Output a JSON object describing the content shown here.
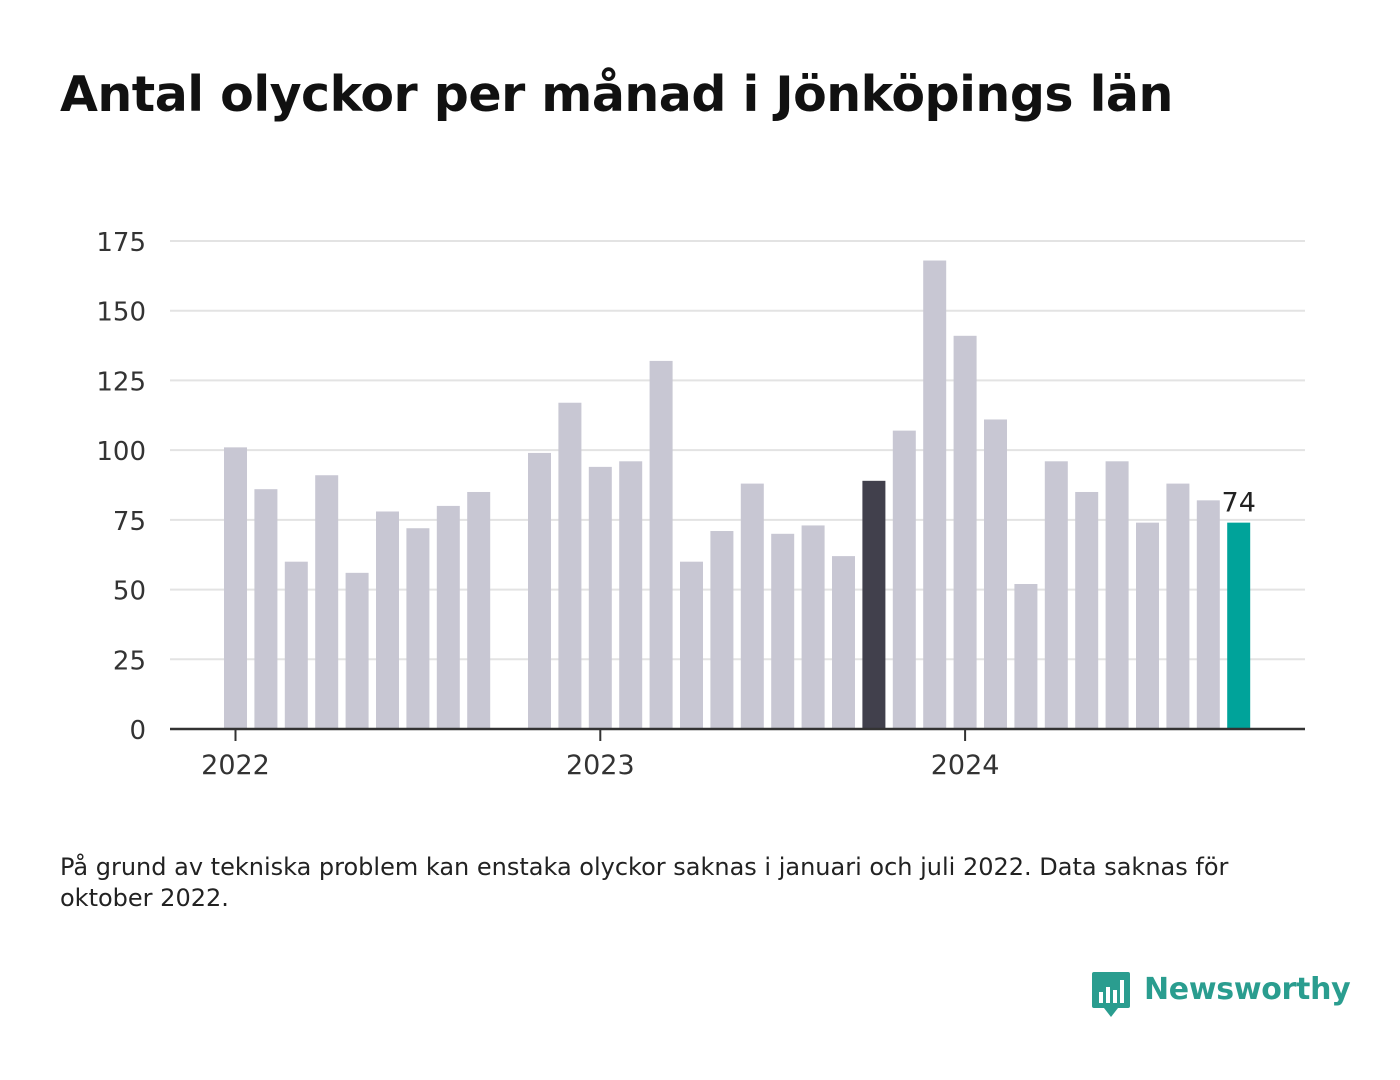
{
  "title": "Antal olyckor per månad i Jönköpings län",
  "footnote": "På grund av tekniska problem kan enstaka olyckor saknas i januari och juli 2022. Data saknas för oktober 2022.",
  "brand": {
    "name": "Newsworthy",
    "color": "#2a9d8f"
  },
  "colors": {
    "bar_default": "#c8c7d3",
    "bar_highlight_dark": "#41404c",
    "bar_latest": "#00a39a",
    "grid": "#e3e3e3",
    "axis": "#333333"
  },
  "chart_data": {
    "type": "bar",
    "title": "Antal olyckor per månad i Jönköpings län",
    "xlabel": "",
    "ylabel": "",
    "ylim": [
      0,
      175
    ],
    "yticks": [
      0,
      25,
      50,
      75,
      100,
      125,
      150,
      175
    ],
    "x_tick_labels": [
      {
        "label": "2022",
        "month": "2022-01"
      },
      {
        "label": "2023",
        "month": "2023-01"
      },
      {
        "label": "2024",
        "month": "2024-01"
      }
    ],
    "grid": true,
    "months": [
      "2022-01",
      "2022-02",
      "2022-03",
      "2022-04",
      "2022-05",
      "2022-06",
      "2022-07",
      "2022-08",
      "2022-09",
      "2022-10",
      "2022-11",
      "2022-12",
      "2023-01",
      "2023-02",
      "2023-03",
      "2023-04",
      "2023-05",
      "2023-06",
      "2023-07",
      "2023-08",
      "2023-09",
      "2023-10",
      "2023-11",
      "2023-12",
      "2024-01",
      "2024-02",
      "2024-03",
      "2024-04",
      "2024-05",
      "2024-06",
      "2024-07",
      "2024-08",
      "2024-09",
      "2024-10"
    ],
    "values": [
      101,
      86,
      60,
      91,
      56,
      78,
      72,
      80,
      85,
      null,
      99,
      117,
      94,
      96,
      132,
      60,
      71,
      88,
      70,
      73,
      62,
      89,
      107,
      168,
      141,
      111,
      52,
      96,
      85,
      96,
      74,
      88,
      82,
      74
    ],
    "highlight_dark_month": "2023-10",
    "latest_month": "2024-10",
    "latest_label": "74"
  }
}
